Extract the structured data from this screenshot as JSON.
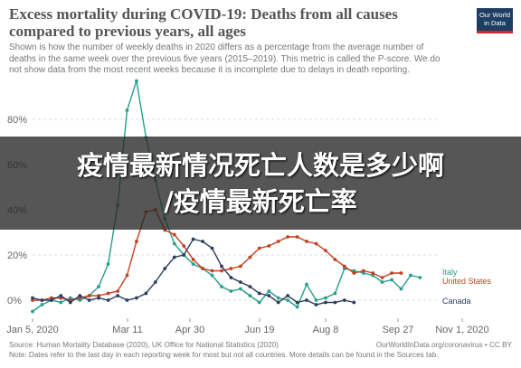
{
  "logo": {
    "line1": "Our World",
    "line2": "in Data"
  },
  "overlay": {
    "line1": "疫情最新情况死亡人数是多少啊",
    "line2": "/疫情最新死亡率"
  },
  "footer": {
    "source": "Source: Human Mortality Database (2020), UK Office for National Statistics (2020)",
    "note": "Note: Dates refer to the last day in each reporting week for most but not all countries. More details can be found in the Sources tab.",
    "credit": "OurWorldInData.org/coronavirus • CC BY"
  },
  "colors": {
    "italy": "#289e8b",
    "united_states": "#c2411e",
    "canada": "#2c3e5c",
    "grid": "#dddddd",
    "axis_text": "#666666"
  },
  "chart_data": {
    "type": "line",
    "title": "Excess mortality during COVID-19: Deaths from all causes compared to previous years, all ages",
    "subtitle": "Shown is how the number of weekly deaths in 2020 differs as a percentage from the average number of deaths in the same week over the previous five years (2015–2019). This metric is called the P-score. We do not show data from the most recent weeks because it is incomplete due to delays in death reporting.",
    "xlabel": "",
    "ylabel": "",
    "x_ticks": [
      "Jan 5, 2020",
      "Mar 11",
      "Apr 30",
      "Jun 19",
      "Aug 8",
      "Sep 27",
      "Nov 1, 2020"
    ],
    "y_ticks": [
      "0%",
      "20%",
      "40%",
      "60%",
      "80%"
    ],
    "ylim": [
      -8,
      92
    ],
    "grid": true,
    "legend": "inline-right",
    "x_unit": "weeks of 2020",
    "series": [
      {
        "name": "Italy",
        "values": [
          [
            1,
            -5
          ],
          [
            2,
            -2
          ],
          [
            3,
            0
          ],
          [
            4,
            -1
          ],
          [
            5,
            1
          ],
          [
            6,
            0
          ],
          [
            7,
            2
          ],
          [
            8,
            6
          ],
          [
            9,
            16
          ],
          [
            10,
            42
          ],
          [
            11,
            84
          ],
          [
            12,
            97
          ],
          [
            13,
            72
          ],
          [
            14,
            53
          ],
          [
            15,
            36
          ],
          [
            16,
            25
          ],
          [
            17,
            20
          ],
          [
            18,
            16
          ],
          [
            19,
            14
          ],
          [
            20,
            11
          ],
          [
            21,
            6
          ],
          [
            22,
            4
          ],
          [
            23,
            5
          ],
          [
            24,
            2
          ],
          [
            25,
            -1
          ],
          [
            26,
            4
          ],
          [
            27,
            1
          ],
          [
            28,
            0
          ],
          [
            29,
            -3
          ],
          [
            30,
            7
          ],
          [
            31,
            0
          ],
          [
            32,
            1
          ],
          [
            33,
            3
          ],
          [
            34,
            14
          ],
          [
            35,
            13
          ],
          [
            36,
            12
          ],
          [
            37,
            11
          ],
          [
            38,
            8
          ],
          [
            39,
            9
          ],
          [
            40,
            5
          ],
          [
            41,
            11
          ],
          [
            42,
            10
          ]
        ]
      },
      {
        "name": "United States",
        "values": [
          [
            1,
            0
          ],
          [
            2,
            0
          ],
          [
            3,
            1
          ],
          [
            4,
            1
          ],
          [
            5,
            0
          ],
          [
            6,
            1
          ],
          [
            7,
            2
          ],
          [
            8,
            2
          ],
          [
            9,
            3
          ],
          [
            10,
            4
          ],
          [
            11,
            11
          ],
          [
            12,
            26
          ],
          [
            13,
            39
          ],
          [
            14,
            40
          ],
          [
            15,
            31
          ],
          [
            16,
            29
          ],
          [
            17,
            24
          ],
          [
            18,
            18
          ],
          [
            19,
            14
          ],
          [
            20,
            13
          ],
          [
            21,
            13
          ],
          [
            22,
            14
          ],
          [
            23,
            15
          ],
          [
            24,
            19
          ],
          [
            25,
            23
          ],
          [
            26,
            24
          ],
          [
            27,
            26
          ],
          [
            28,
            28
          ],
          [
            29,
            28
          ],
          [
            30,
            26
          ],
          [
            31,
            25
          ],
          [
            32,
            22
          ],
          [
            33,
            18
          ],
          [
            34,
            15
          ],
          [
            35,
            12
          ],
          [
            36,
            13
          ],
          [
            37,
            12
          ],
          [
            38,
            10
          ],
          [
            39,
            12
          ],
          [
            40,
            12
          ]
        ]
      },
      {
        "name": "Canada",
        "values": [
          [
            1,
            1
          ],
          [
            2,
            0
          ],
          [
            3,
            0
          ],
          [
            4,
            2
          ],
          [
            5,
            -1
          ],
          [
            6,
            2
          ],
          [
            7,
            0
          ],
          [
            8,
            1
          ],
          [
            9,
            0
          ],
          [
            10,
            2
          ],
          [
            11,
            0
          ],
          [
            12,
            1
          ],
          [
            13,
            3
          ],
          [
            14,
            8
          ],
          [
            15,
            14
          ],
          [
            16,
            19
          ],
          [
            17,
            20
          ],
          [
            18,
            27
          ],
          [
            19,
            26
          ],
          [
            20,
            23
          ],
          [
            21,
            15
          ],
          [
            22,
            10
          ],
          [
            23,
            8
          ],
          [
            24,
            6
          ],
          [
            25,
            3
          ],
          [
            26,
            2
          ],
          [
            27,
            -1
          ],
          [
            28,
            2
          ],
          [
            29,
            -1
          ],
          [
            30,
            0
          ],
          [
            31,
            -2
          ],
          [
            32,
            -1
          ],
          [
            33,
            -1
          ],
          [
            34,
            0
          ],
          [
            35,
            -1
          ]
        ]
      }
    ]
  }
}
